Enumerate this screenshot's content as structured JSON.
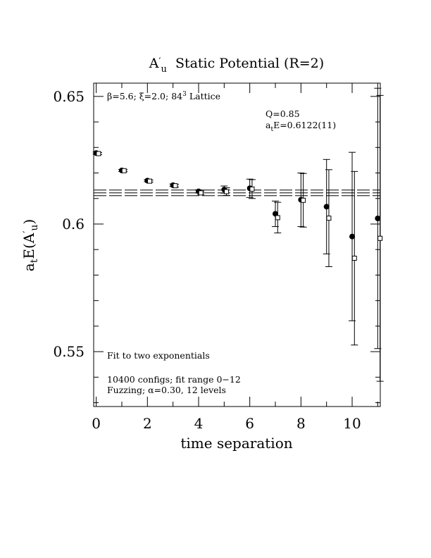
{
  "chart_data": {
    "type": "scatter",
    "title": {
      "base": "A",
      "prime": "′",
      "sub": "u",
      "rest": "  Static Potential (R=2)"
    },
    "xlabel": "time separation",
    "ylabel": {
      "pre": "a",
      "sub1": "t",
      "mid": "E(A",
      "prime": "′",
      "sub2": "u",
      "post": ")"
    },
    "xlim": [
      -0.1,
      11.1
    ],
    "ylim": [
      0.5285,
      0.6552
    ],
    "x_ticks": [
      0,
      2,
      4,
      6,
      8,
      10
    ],
    "x_tick_labels": [
      "0",
      "2",
      "4",
      "6",
      "8",
      "10"
    ],
    "y_ticks": [
      0.55,
      0.6,
      0.65
    ],
    "y_tick_labels": [
      "0.55",
      "0.6",
      "0.65"
    ],
    "annotations": {
      "params": {
        "beta": "β=5.6; ",
        "xi": "ξ=2.0; ",
        "lattice": "84",
        "sup": "3",
        "lattice_rest": " Lattice"
      },
      "q": "Q=0.85",
      "energy": {
        "pre": "a",
        "sub": "t",
        "post": "E=0.6122(11)"
      },
      "fit": "Fit to two exponentials",
      "configs": "10400 configs; fit range 0−12",
      "fuzzing": "Fuzzing; α=0.30, 12 levels"
    },
    "fit_line": {
      "center": 0.6122,
      "error": 0.0011
    },
    "series": [
      {
        "marker": "filled-circle",
        "points": [
          {
            "x": 0,
            "y": 0.6278,
            "err": 0.0004
          },
          {
            "x": 1,
            "y": 0.621,
            "err": 0.0004
          },
          {
            "x": 2,
            "y": 0.617,
            "err": 0.0004
          },
          {
            "x": 3,
            "y": 0.6152,
            "err": 0.0005
          },
          {
            "x": 4,
            "y": 0.6128,
            "err": 0.0006
          },
          {
            "x": 5,
            "y": 0.6135,
            "err": 0.0014
          },
          {
            "x": 6,
            "y": 0.614,
            "err": 0.0036
          },
          {
            "x": 7,
            "y": 0.604,
            "err": 0.005
          },
          {
            "x": 8,
            "y": 0.6095,
            "err": 0.0105
          },
          {
            "x": 9,
            "y": 0.6068,
            "err": 0.0185
          },
          {
            "x": 10,
            "y": 0.5951,
            "err": 0.033
          },
          {
            "x": 11,
            "y": 0.6022,
            "err": 0.051
          }
        ]
      },
      {
        "marker": "open-square",
        "points": [
          {
            "x": 0,
            "y": 0.6276,
            "err": 0.0004
          },
          {
            "x": 1,
            "y": 0.6209,
            "err": 0.0004
          },
          {
            "x": 2,
            "y": 0.6168,
            "err": 0.0004
          },
          {
            "x": 3,
            "y": 0.615,
            "err": 0.0005
          },
          {
            "x": 4,
            "y": 0.6122,
            "err": 0.0007
          },
          {
            "x": 5,
            "y": 0.6127,
            "err": 0.0015
          },
          {
            "x": 6,
            "y": 0.6137,
            "err": 0.0037
          },
          {
            "x": 7,
            "y": 0.6025,
            "err": 0.006
          },
          {
            "x": 8,
            "y": 0.6093,
            "err": 0.0105
          },
          {
            "x": 9,
            "y": 0.6023,
            "err": 0.019
          },
          {
            "x": 10,
            "y": 0.5866,
            "err": 0.034
          },
          {
            "x": 11,
            "y": 0.5944,
            "err": 0.056
          }
        ]
      }
    ]
  }
}
